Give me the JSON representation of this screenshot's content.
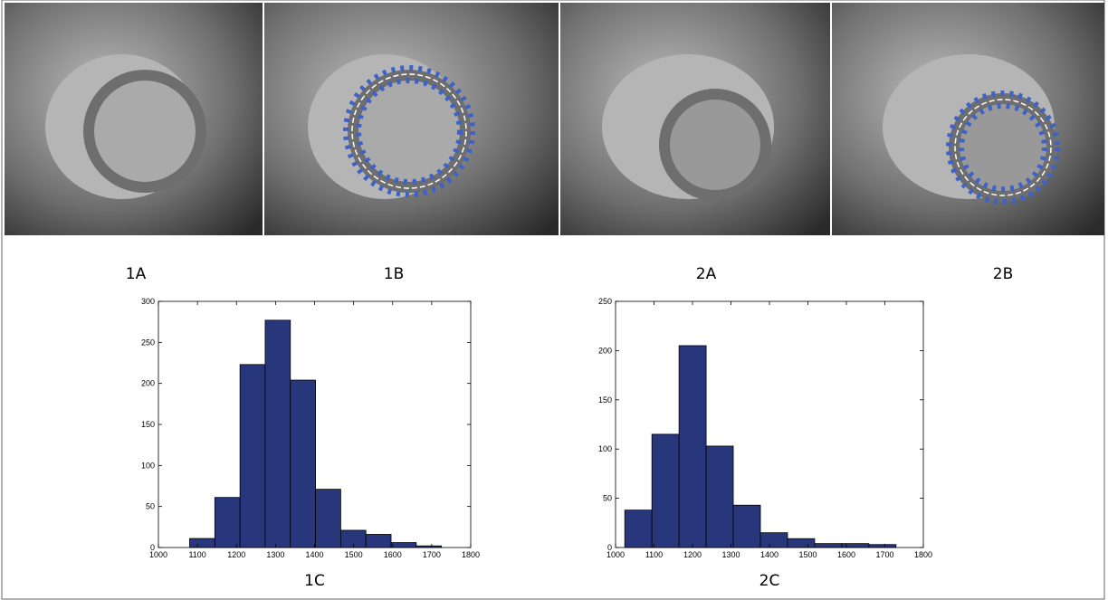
{
  "image_labels": [
    "1A",
    "1B",
    "2A",
    "2B"
  ],
  "chart_data": [
    {
      "type": "histogram",
      "title": "1C",
      "color": "#28367c",
      "bins": [
        1080,
        1144.5,
        1209,
        1273.5,
        1338,
        1402.5,
        1467,
        1531.5,
        1596,
        1660.5,
        1725
      ],
      "values": [
        11,
        61,
        223,
        277,
        204,
        71,
        21,
        16,
        6,
        2
      ],
      "xlim": [
        1000,
        1800
      ],
      "xticks": [
        1000,
        1100,
        1200,
        1300,
        1400,
        1500,
        1600,
        1700,
        1800
      ],
      "ylim": [
        0,
        300
      ],
      "yticks": [
        0,
        50,
        100,
        150,
        200,
        250,
        300
      ]
    },
    {
      "type": "histogram",
      "title": "2C",
      "color": "#28367c",
      "bins": [
        1024,
        1094.5,
        1165,
        1235.5,
        1306,
        1376.5,
        1447,
        1517.5,
        1588,
        1658.5,
        1729
      ],
      "values": [
        38,
        115,
        205,
        103,
        43,
        15,
        9,
        4,
        4,
        3
      ],
      "xlim": [
        1000,
        1800
      ],
      "xticks": [
        1000,
        1100,
        1200,
        1300,
        1400,
        1500,
        1600,
        1700,
        1800
      ],
      "ylim": [
        0,
        250
      ],
      "yticks": [
        0,
        50,
        100,
        150,
        200,
        250
      ]
    }
  ]
}
